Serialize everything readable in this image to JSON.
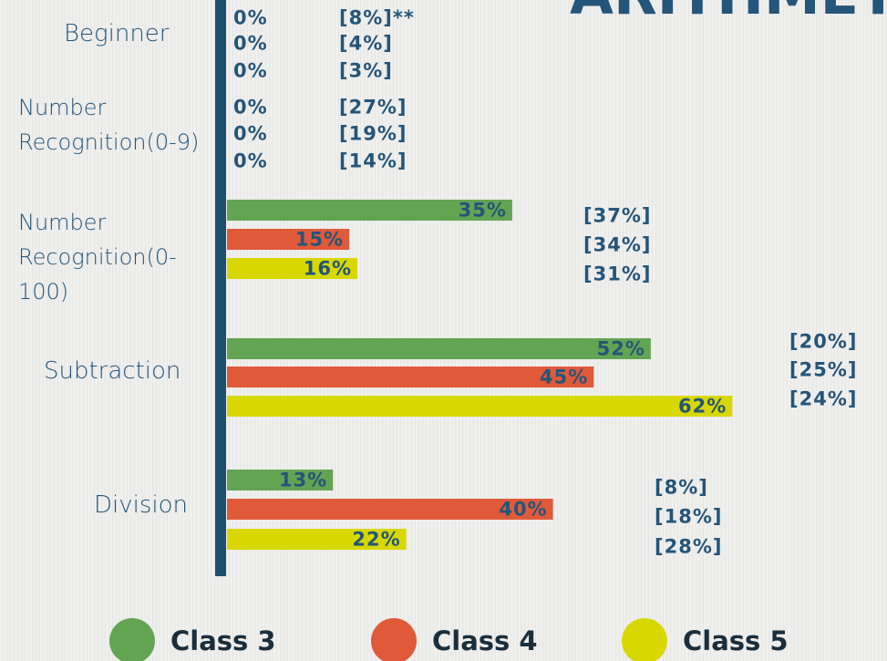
{
  "chart_data": {
    "type": "barh",
    "title": "ARITHMETIC",
    "categories": [
      "Beginner",
      "Number Recognition(0-9)",
      "Number Recognition(0-100)",
      "Subtraction",
      "Division"
    ],
    "series": [
      {
        "name": "Class 3",
        "color": "#63a452",
        "values": [
          0,
          0,
          35,
          52,
          13
        ],
        "value_labels": [
          "0%",
          "0%",
          "35%",
          "52%",
          "13%"
        ],
        "bracket_labels": [
          "[8%]**",
          "[27%]",
          "[37%]",
          "[20%]",
          "[8%]"
        ]
      },
      {
        "name": "Class 4",
        "color": "#e05a3a",
        "values": [
          0,
          0,
          15,
          45,
          40
        ],
        "value_labels": [
          "0%",
          "0%",
          "15%",
          "45%",
          "40%"
        ],
        "bracket_labels": [
          "[4%]",
          "[19%]",
          "[34%]",
          "[25%]",
          "[18%]"
        ]
      },
      {
        "name": "Class 5",
        "color": "#d8d800",
        "values": [
          0,
          0,
          16,
          62,
          22
        ],
        "value_labels": [
          "0%",
          "0%",
          "16%",
          "62%",
          "22%"
        ],
        "bracket_labels": [
          "[3%]",
          "[14%]",
          "[31%]",
          "[24%]",
          "[28%]"
        ]
      }
    ],
    "legend": "bottom"
  }
}
